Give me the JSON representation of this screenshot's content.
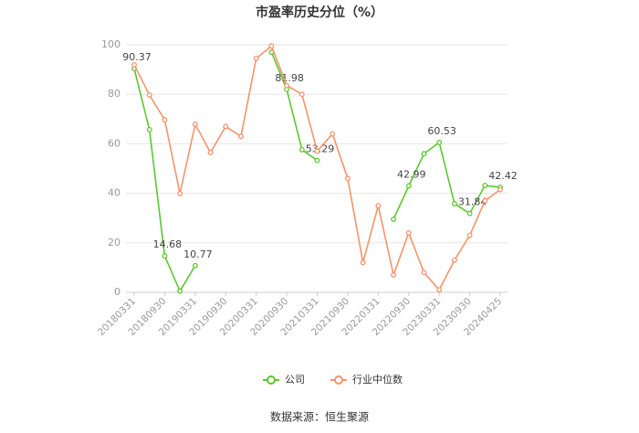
{
  "chart_data": {
    "type": "line",
    "title": "市盈率历史分位（%）",
    "categories": [
      "20180331",
      null,
      "20180930",
      null,
      "20190331",
      null,
      "20190930",
      null,
      "20200331",
      null,
      "20200930",
      null,
      "20210331",
      null,
      "20210930",
      null,
      "20220331",
      null,
      "20220930",
      null,
      "20230331",
      null,
      "20230930",
      null,
      "20240425"
    ],
    "series": [
      {
        "name": "公司",
        "color": "#5cc72f",
        "values": [
          90.37,
          65.7,
          14.68,
          0.5,
          10.77,
          null,
          null,
          null,
          null,
          97,
          81.98,
          57.6,
          53.29,
          null,
          null,
          null,
          null,
          29.5,
          42.99,
          56,
          60.53,
          35.8,
          31.84,
          43.2,
          42.42
        ],
        "value_labels": [
          "90.37",
          null,
          "14.68",
          null,
          "10.77",
          null,
          null,
          null,
          null,
          null,
          "81.98",
          null,
          "53.29",
          null,
          null,
          null,
          null,
          null,
          "42.99",
          null,
          "60.53",
          null,
          "31.84",
          null,
          "42.42"
        ]
      },
      {
        "name": "行业中位数",
        "color": "#f7926a",
        "values": [
          91.9,
          79.7,
          69.7,
          39.9,
          67.9,
          56.5,
          67,
          63,
          94.5,
          99.5,
          83.5,
          80,
          57,
          64,
          46,
          12,
          35,
          7,
          24,
          8,
          1,
          13,
          23,
          37,
          41.5
        ]
      }
    ],
    "ylim": [
      0,
      100
    ],
    "yticks": [
      0,
      20,
      40,
      60,
      80,
      100
    ],
    "grid": true,
    "legend": "bottom",
    "source": "数据来源：恒生聚源"
  }
}
